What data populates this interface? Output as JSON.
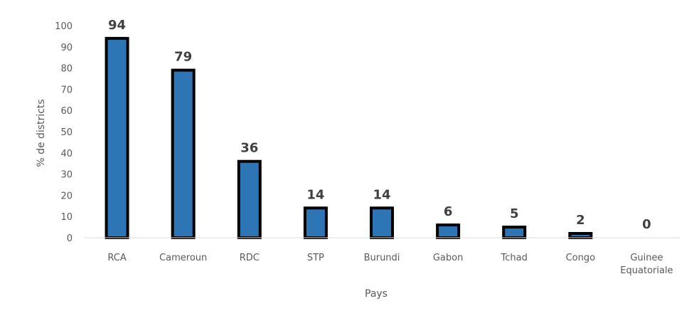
{
  "chart_data": {
    "type": "bar",
    "categories": [
      "RCA",
      "Cameroun",
      "RDC",
      "STP",
      "Burundi",
      "Gabon",
      "Tchad",
      "Congo",
      "Guinee Equatoriale"
    ],
    "series": [
      {
        "values": [
          94,
          79,
          36,
          14,
          14,
          6,
          5,
          2,
          0
        ]
      }
    ],
    "data_labels": [
      "94",
      "79",
      "36",
      "14",
      "14",
      "6",
      "5",
      "2",
      "0"
    ],
    "xlabel": "Pays",
    "ylabel": "% de districts",
    "ylim": [
      0,
      100
    ],
    "yticks": [
      "0",
      "10",
      "20",
      "30",
      "40",
      "50",
      "60",
      "70",
      "80",
      "90",
      "100"
    ],
    "grid": false,
    "legend": "none",
    "colors": {
      "bar_fill": "#2E75B6",
      "bar_stroke": "#000000",
      "axis": "#D9D9D9"
    }
  }
}
